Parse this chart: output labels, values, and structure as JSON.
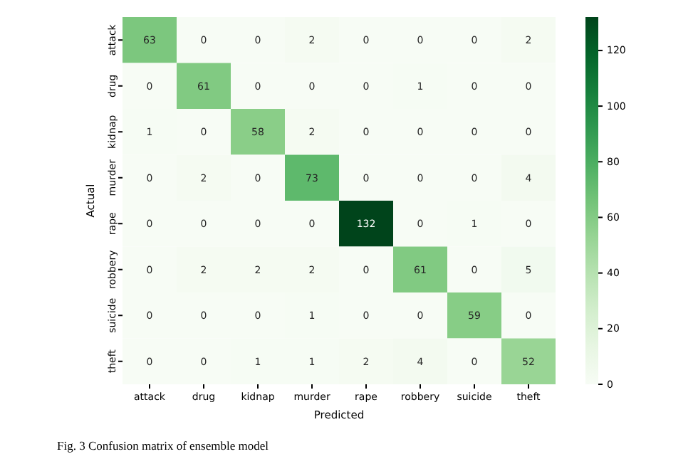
{
  "chart_data": {
    "type": "heatmap",
    "xlabel": "Predicted",
    "ylabel": "Actual",
    "categories": [
      "attack",
      "drug",
      "kidnap",
      "murder",
      "rape",
      "robbery",
      "suicide",
      "theft"
    ],
    "y_categories": [
      "attack",
      "drug",
      "kidnap",
      "murder",
      "rape",
      "robbery",
      "suicide",
      "theft"
    ],
    "cells": [
      [
        63,
        0,
        0,
        2,
        0,
        0,
        0,
        2
      ],
      [
        0,
        61,
        0,
        0,
        0,
        1,
        0,
        0
      ],
      [
        1,
        0,
        58,
        2,
        0,
        0,
        0,
        0
      ],
      [
        0,
        2,
        0,
        73,
        0,
        0,
        0,
        4
      ],
      [
        0,
        0,
        0,
        0,
        132,
        0,
        1,
        0
      ],
      [
        0,
        2,
        2,
        2,
        0,
        61,
        0,
        5
      ],
      [
        0,
        0,
        0,
        1,
        0,
        0,
        59,
        0
      ],
      [
        0,
        0,
        1,
        1,
        2,
        4,
        0,
        52
      ]
    ],
    "clim": [
      0,
      132
    ],
    "cticks": [
      0,
      20,
      40,
      60,
      80,
      100,
      120
    ],
    "data_labels": true,
    "annotations": [
      "Fig. 3  Confusion matrix of ensemble model"
    ]
  }
}
